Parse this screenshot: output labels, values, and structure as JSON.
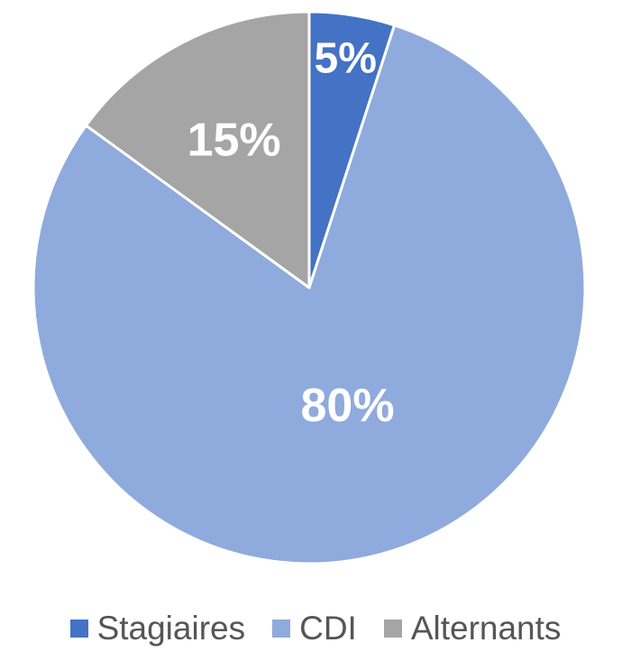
{
  "chart_data": {
    "type": "pie",
    "title": "",
    "slices": [
      {
        "name": "Stagiaires",
        "value": 5,
        "label": "5%",
        "color": "#4472c4"
      },
      {
        "name": "CDI",
        "value": 80,
        "label": "80%",
        "color": "#8faadc"
      },
      {
        "name": "Alternants",
        "value": 15,
        "label": "15%",
        "color": "#a5a5a5"
      }
    ],
    "start_angle_deg": 0,
    "direction": "clockwise",
    "legend_position": "bottom",
    "slice_border_color": "#ffffff",
    "label_color": "#ffffff"
  }
}
